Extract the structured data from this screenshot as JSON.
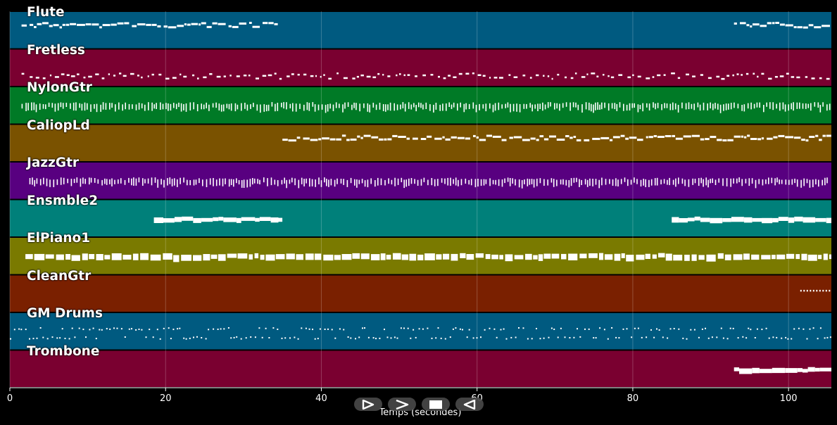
{
  "chart_data": {
    "type": "piano-roll",
    "xlabel": "Temps (secondes)",
    "xlim": [
      0,
      105.5
    ],
    "x_ticks": [
      "0",
      "20",
      "40",
      "60",
      "80",
      "100"
    ],
    "x_tick_values": [
      0,
      20,
      40,
      60,
      80,
      100
    ],
    "grid": true,
    "tracks": [
      {
        "name": "Flute",
        "color": "#005a80",
        "segments": [
          [
            1.5,
            34.5
          ],
          [
            93,
            105.5
          ]
        ],
        "style": "melody"
      },
      {
        "name": "Fretless",
        "color": "#7a0030",
        "segments": [
          [
            1.5,
            105.5
          ]
        ],
        "style": "bass"
      },
      {
        "name": "NylonGtr",
        "color": "#007a26",
        "segments": [
          [
            1.5,
            105.5
          ]
        ],
        "style": "strum"
      },
      {
        "name": "CaliopLd",
        "color": "#7a5200",
        "segments": [
          [
            35,
            105.5
          ]
        ],
        "style": "melody"
      },
      {
        "name": "JazzGtr",
        "color": "#580080",
        "segments": [
          [
            2.5,
            105.5
          ]
        ],
        "style": "strum"
      },
      {
        "name": "Ensmble2",
        "color": "#00807a",
        "segments": [
          [
            18.5,
            35
          ],
          [
            85,
            105.5
          ]
        ],
        "style": "pad"
      },
      {
        "name": "ElPiano1",
        "color": "#7a7a00",
        "segments": [
          [
            2,
            105.5
          ]
        ],
        "style": "chords"
      },
      {
        "name": "CleanGtr",
        "color": "#7a2000",
        "segments": [
          [
            101.5,
            105.5
          ]
        ],
        "style": "dots"
      },
      {
        "name": "GM Drums",
        "color": "#005a80",
        "segments": [
          [
            0,
            105.5
          ]
        ],
        "style": "drums"
      },
      {
        "name": "Trombone",
        "color": "#7a0030",
        "segments": [
          [
            93,
            105.5
          ]
        ],
        "style": "pad"
      }
    ]
  },
  "controls": {
    "play_icon": "play-icon",
    "forward_icon": "forward-icon",
    "stop_icon": "stop-icon",
    "rewind_icon": "rewind-icon"
  }
}
